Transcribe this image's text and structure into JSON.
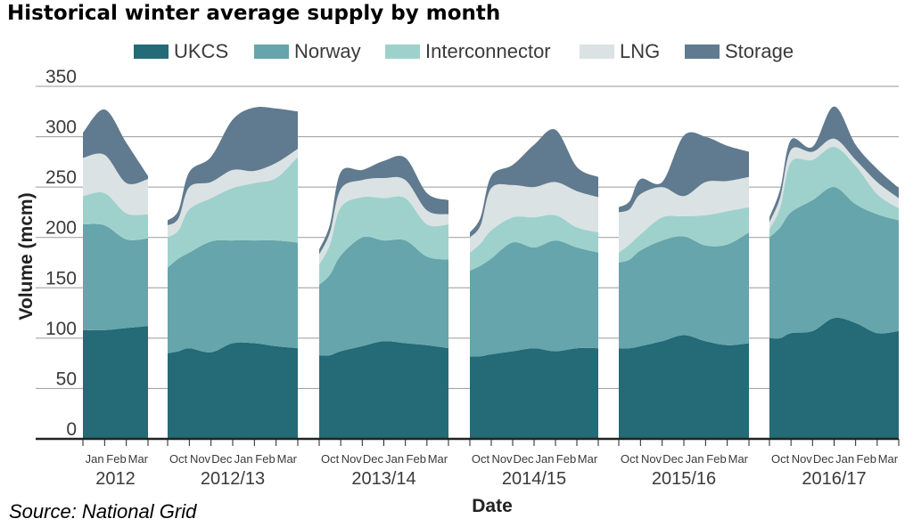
{
  "title": "Historical winter average supply by month",
  "source": "Source: National Grid",
  "colors": {
    "UKCS": "#246a77",
    "Norway": "#65a5ab",
    "Interconnector": "#9ed1cc",
    "LNG": "#dbe2e3",
    "Storage": "#607a8f",
    "grid": "#9a9a9a",
    "axis": "#222222"
  },
  "chart_data": {
    "type": "area",
    "stacked": true,
    "xlabel": "Date",
    "ylabel": "Volume (mcm)",
    "ylim": [
      0,
      350
    ],
    "yticks": [
      0,
      50,
      100,
      150,
      200,
      250,
      300,
      350
    ],
    "grid": true,
    "legend_position": "top",
    "series_names": [
      "UKCS",
      "Norway",
      "Interconnector",
      "LNG",
      "Storage"
    ],
    "winters": [
      {
        "label": "2012",
        "months": [
          "Jan",
          "Feb",
          "Mar"
        ],
        "x": [
          0,
          1,
          2,
          3
        ],
        "UKCS": [
          108,
          108,
          110,
          112
        ],
        "Norway": [
          105,
          104,
          88,
          87
        ],
        "Interconnector": [
          28,
          32,
          26,
          24
        ],
        "LNG": [
          38,
          38,
          30,
          35
        ],
        "Storage": [
          25,
          45,
          40,
          3
        ]
      },
      {
        "label": "2012/13",
        "months": [
          "Oct",
          "Nov",
          "Dec",
          "Jan",
          "Feb",
          "Mar"
        ],
        "x": [
          0,
          0.5,
          1,
          2,
          3,
          4,
          5,
          6
        ],
        "UKCS": [
          85,
          87,
          90,
          86,
          95,
          95,
          92,
          90
        ],
        "Norway": [
          85,
          92,
          95,
          110,
          102,
          102,
          105,
          105
        ],
        "Interconnector": [
          30,
          28,
          43,
          43,
          52,
          57,
          62,
          85
        ],
        "LNG": [
          12,
          12,
          22,
          16,
          18,
          12,
          15,
          8
        ],
        "Storage": [
          5,
          8,
          15,
          25,
          50,
          63,
          54,
          37
        ]
      },
      {
        "label": "2013/14",
        "months": [
          "Oct",
          "Nov",
          "Dec",
          "Jan",
          "Feb",
          "Mar"
        ],
        "x": [
          0,
          0.5,
          1,
          2,
          3,
          4,
          5,
          6
        ],
        "UKCS": [
          83,
          83,
          87,
          92,
          97,
          95,
          93,
          90
        ],
        "Norway": [
          70,
          80,
          95,
          108,
          100,
          102,
          88,
          88
        ],
        "Interconnector": [
          20,
          30,
          48,
          40,
          42,
          42,
          32,
          35
        ],
        "LNG": [
          10,
          12,
          18,
          17,
          20,
          18,
          14,
          10
        ],
        "Storage": [
          5,
          8,
          17,
          10,
          17,
          22,
          17,
          14
        ]
      },
      {
        "label": "2014/15",
        "months": [
          "Oct",
          "Nov",
          "Dec",
          "Jan",
          "Feb",
          "Mar"
        ],
        "x": [
          0,
          0.5,
          1,
          2,
          3,
          4,
          5,
          6
        ],
        "UKCS": [
          82,
          82,
          84,
          87,
          90,
          87,
          90,
          90
        ],
        "Norway": [
          85,
          90,
          95,
          108,
          100,
          110,
          100,
          95
        ],
        "Interconnector": [
          18,
          22,
          28,
          25,
          30,
          25,
          20,
          20
        ],
        "LNG": [
          15,
          18,
          42,
          32,
          30,
          33,
          36,
          35
        ],
        "Storage": [
          5,
          8,
          12,
          20,
          42,
          52,
          24,
          20
        ]
      },
      {
        "label": "2015/16",
        "months": [
          "Oct",
          "Nov",
          "Dec",
          "Jan",
          "Feb",
          "Mar"
        ],
        "x": [
          0,
          0.5,
          1,
          2,
          3,
          4,
          5,
          6
        ],
        "UKCS": [
          90,
          90,
          92,
          97,
          103,
          97,
          93,
          95
        ],
        "Norway": [
          85,
          88,
          95,
          100,
          98,
          95,
          100,
          110
        ],
        "Interconnector": [
          10,
          15,
          16,
          23,
          20,
          30,
          33,
          25
        ],
        "LNG": [
          40,
          35,
          40,
          30,
          20,
          33,
          30,
          30
        ],
        "Storage": [
          5,
          8,
          15,
          5,
          60,
          45,
          35,
          25
        ]
      },
      {
        "label": "2016/17",
        "months": [
          "Oct",
          "Nov",
          "Dec",
          "Jan",
          "Feb",
          "Mar"
        ],
        "x": [
          0,
          0.5,
          1,
          2,
          3,
          4,
          5,
          6
        ],
        "UKCS": [
          100,
          100,
          105,
          107,
          120,
          115,
          105,
          107
        ],
        "Norway": [
          100,
          110,
          120,
          130,
          130,
          118,
          118,
          110
        ],
        "Interconnector": [
          8,
          20,
          50,
          40,
          40,
          38,
          20,
          12
        ],
        "LNG": [
          7,
          10,
          12,
          8,
          8,
          6,
          12,
          10
        ],
        "Storage": [
          5,
          8,
          10,
          5,
          32,
          15,
          13,
          10
        ]
      }
    ]
  }
}
